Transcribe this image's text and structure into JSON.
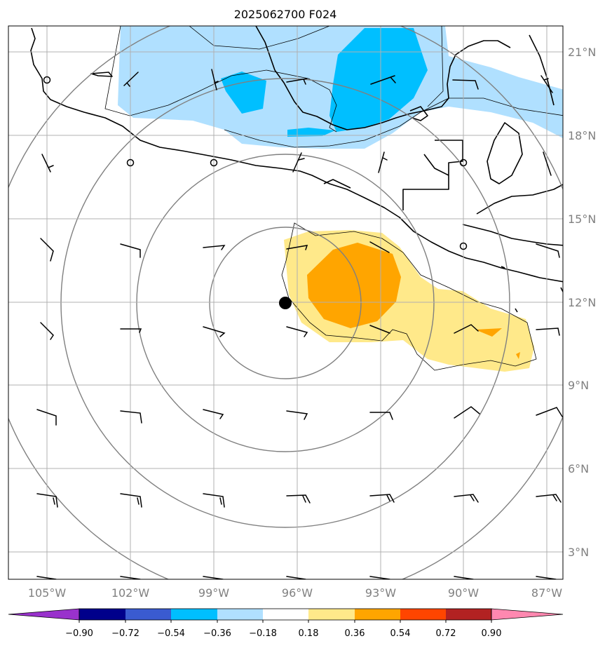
{
  "figure": {
    "title": "2025062700 F024"
  },
  "axes": {
    "lon_labels": [
      "105°W",
      "102°W",
      "99°W",
      "96°W",
      "93°W",
      "90°W",
      "87°W"
    ],
    "lat_labels": [
      "21°N",
      "18°N",
      "15°N",
      "12°N",
      "9°N",
      "6°N",
      "3°N"
    ],
    "grid": true
  },
  "colorbar": {
    "tick_labels": [
      "−0.90",
      "−0.72",
      "−0.54",
      "−0.36",
      "−0.18",
      "0.18",
      "0.36",
      "0.54",
      "0.72",
      "0.90"
    ],
    "colors": [
      "#9932cc",
      "#00008b",
      "#3a5bd0",
      "#00bfff",
      "#b0e0ff",
      "#ffffff",
      "#ffe98a",
      "#ffa500",
      "#ff4500",
      "#b22222",
      "#ff88b0"
    ],
    "extend": "both"
  },
  "marker": {
    "description": "storm center",
    "lon": -96.5,
    "lat": 12.0
  },
  "range_rings": 4
}
